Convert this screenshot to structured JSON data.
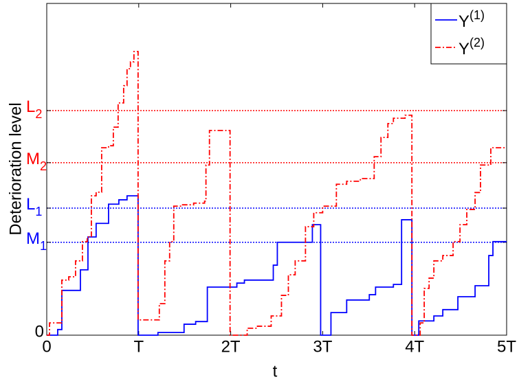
{
  "chart_data": {
    "type": "line",
    "step": "post",
    "xlabel": "t",
    "ylabel": "Deterioration level",
    "xlim": [
      0,
      5
    ],
    "xticks": [
      0,
      {
        "value": 1,
        "label": "T"
      },
      {
        "value": 2,
        "label": "2T"
      },
      {
        "value": 3,
        "label": "3T"
      },
      {
        "value": 4,
        "label": "4T"
      },
      {
        "value": 5,
        "label": "5T"
      }
    ],
    "ylim": [
      0,
      1
    ],
    "yticks": [
      0,
      {
        "value": 0.28,
        "label": "M1",
        "color": "#0000ff"
      },
      {
        "value": 0.383,
        "label": "L1",
        "color": "#0000ff"
      },
      {
        "value": 0.52,
        "label": "M2",
        "color": "#ff0000"
      },
      {
        "value": 0.677,
        "label": "L2",
        "color": "#ff0000"
      }
    ],
    "level_lines": true,
    "legend": "upper right",
    "series": [
      {
        "name": "Y(1)",
        "color": "#0000ff",
        "dash": "solid",
        "x": [
          0,
          0.119,
          0.164,
          0.366,
          0.448,
          0.537,
          0.672,
          0.784,
          0.873,
          0.993,
          1.209,
          1.493,
          1.619,
          1.746,
          2.067,
          2.149,
          2.463,
          2.507,
          2.888,
          2.978,
          3.09,
          3.261,
          3.507,
          3.575,
          3.769,
          3.858,
          3.97,
          4.045,
          4.209,
          4.306,
          4.47,
          4.657,
          4.806,
          4.851,
          5
        ],
        "values": [
          0,
          0.017,
          0.135,
          0.197,
          0.296,
          0.337,
          0.395,
          0.408,
          0.42,
          0,
          0.008,
          0.033,
          0.041,
          0.145,
          0.157,
          0.166,
          0.211,
          0.28,
          0.333,
          0,
          0.068,
          0.106,
          0.122,
          0.145,
          0.153,
          0.348,
          0,
          0.043,
          0.058,
          0.077,
          0.116,
          0.149,
          0.24,
          0.282,
          0.282
        ]
      },
      {
        "name": "Y(2)",
        "color": "#ff0000",
        "dash": "dashdot",
        "x": [
          0,
          0.03,
          0.164,
          0.239,
          0.313,
          0.388,
          0.44,
          0.485,
          0.537,
          0.597,
          0.672,
          0.724,
          0.776,
          0.836,
          0.873,
          0.91,
          0.948,
          0.993,
          1.224,
          1.284,
          1.336,
          1.381,
          1.47,
          1.597,
          1.716,
          1.731,
          1.769,
          1.993,
          2.179,
          2.291,
          2.44,
          2.552,
          2.627,
          2.701,
          2.813,
          2.903,
          3.0,
          3.149,
          3.261,
          3.41,
          3.56,
          3.634,
          3.709,
          3.769,
          3.896,
          3.97,
          4.06,
          4.104,
          4.157,
          4.209,
          4.306,
          4.418,
          4.493,
          4.567,
          4.657,
          4.716,
          4.828,
          5
        ],
        "values": [
          0,
          0.037,
          0.166,
          0.176,
          0.224,
          0.282,
          0.296,
          0.42,
          0.431,
          0.565,
          0.571,
          0.627,
          0.7,
          0.752,
          0.803,
          0.824,
          0.855,
          0.046,
          0.095,
          0.224,
          0.282,
          0.389,
          0.393,
          0.398,
          0.404,
          0.513,
          0.617,
          0,
          0.021,
          0.027,
          0.058,
          0.12,
          0.182,
          0.224,
          0.327,
          0.369,
          0.389,
          0.455,
          0.464,
          0.472,
          0.538,
          0.596,
          0.638,
          0.654,
          0.663,
          0,
          0.037,
          0.141,
          0.172,
          0.224,
          0.24,
          0.282,
          0.333,
          0.379,
          0.43,
          0.513,
          0.565,
          0.565
        ]
      }
    ]
  }
}
